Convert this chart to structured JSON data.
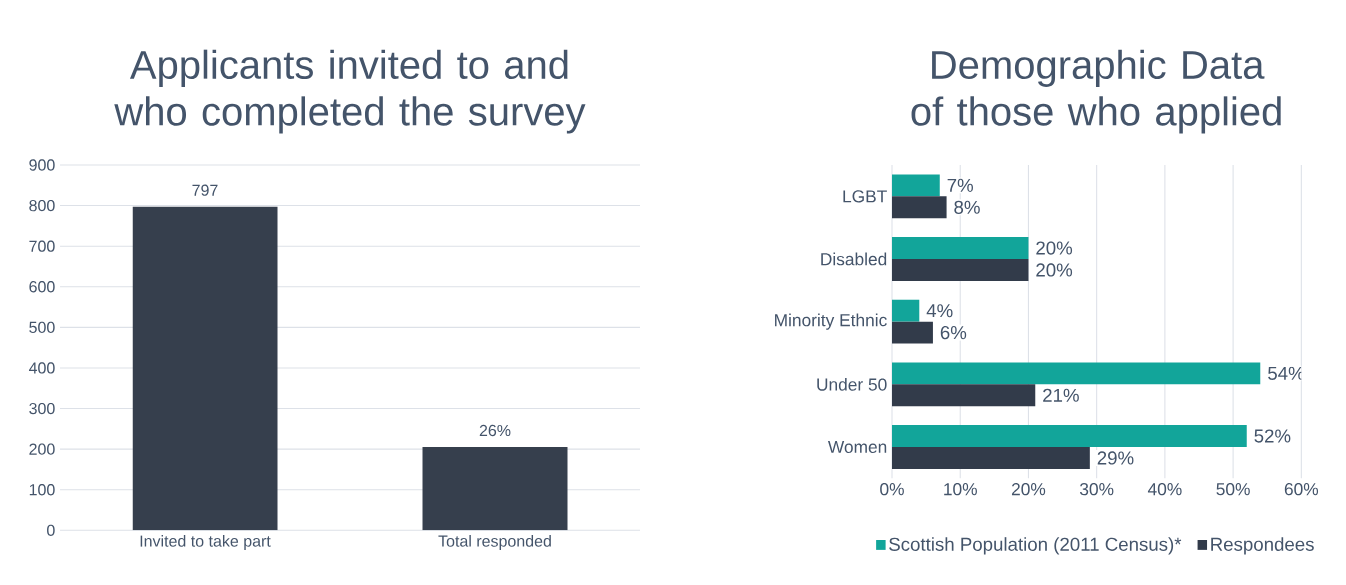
{
  "chart_data": [
    {
      "type": "bar",
      "title": "Applicants invited to and who completed the survey",
      "categories": [
        "Invited to take part",
        "Total responded"
      ],
      "values": [
        797,
        205
      ],
      "value_labels": [
        "797",
        null
      ],
      "annotations": [
        {
          "text": "26%",
          "x": "Total responded",
          "y": 205
        }
      ],
      "color": "#363f4d",
      "ylim": [
        0,
        900
      ],
      "yticks": [
        0,
        100,
        200,
        300,
        400,
        500,
        600,
        700,
        800,
        900
      ],
      "grid": "y"
    },
    {
      "type": "bar",
      "orientation": "horizontal",
      "title": "Demographic Data of those who applied",
      "categories": [
        "LGBT",
        "Disabled",
        "Minority Ethnic",
        "Under 50",
        "Women"
      ],
      "series": [
        {
          "name": "Scottish Population (2011 Census)*",
          "color": "#12a59a",
          "values": [
            7,
            20,
            4,
            54,
            52
          ],
          "value_labels": [
            "7%",
            "20%",
            "4%",
            "54%",
            "52%"
          ]
        },
        {
          "name": "Respondees",
          "color": "#323b4a",
          "values": [
            8,
            20,
            6,
            21,
            29
          ],
          "value_labels": [
            "8%",
            "20%",
            "6%",
            "21%",
            "29%"
          ]
        }
      ],
      "xlim": [
        0,
        60
      ],
      "xticks": [
        {
          "value": 0,
          "label": "0%"
        },
        {
          "value": 10,
          "label": "10%"
        },
        {
          "value": 20,
          "label": "20%"
        },
        {
          "value": 30,
          "label": "30%"
        },
        {
          "value": 40,
          "label": "40%"
        },
        {
          "value": 50,
          "label": "50%"
        },
        {
          "value": 60,
          "label": "60%"
        }
      ],
      "grid": "x",
      "legend": "bottom"
    }
  ]
}
